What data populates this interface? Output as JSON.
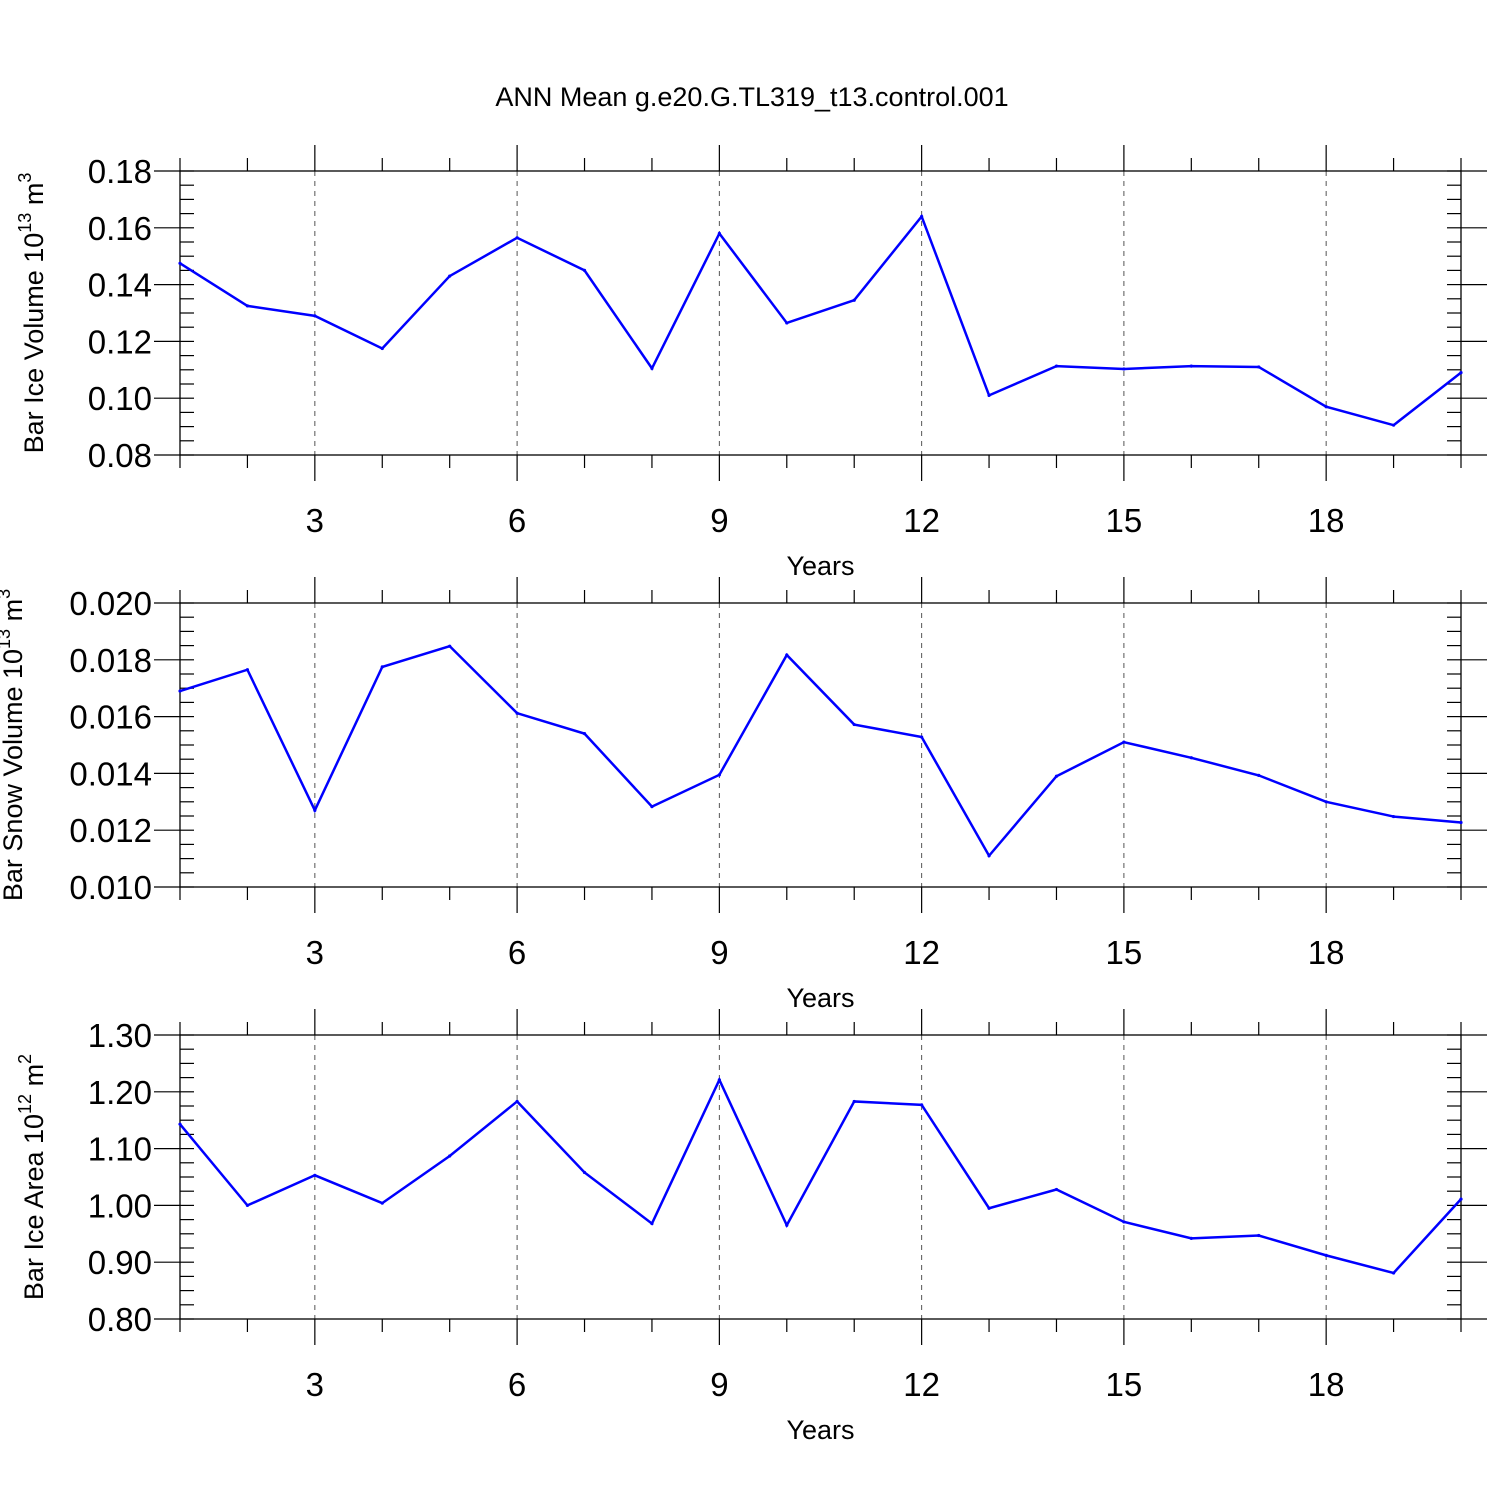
{
  "title": "ANN Mean g.e20.G.TL319_t13.control.001",
  "colors": {
    "line": "#0000ff",
    "axis": "#000000",
    "grid": "#555555"
  },
  "chart_data": [
    {
      "type": "line",
      "title": "ANN Mean g.e20.G.TL319_t13.control.001",
      "xlabel": "Years",
      "ylabel": {
        "text": "Bar Ice Volume 10",
        "sup1": "13",
        "mid": " m",
        "sup2": "3"
      },
      "xlim": [
        1,
        20
      ],
      "ylim": [
        0.08,
        0.18
      ],
      "x_ticks": [
        3,
        6,
        9,
        12,
        15,
        18
      ],
      "x_tick_labels": [
        "3",
        "6",
        "9",
        "12",
        "15",
        "18"
      ],
      "y_ticks": [
        0.08,
        0.1,
        0.12,
        0.14,
        0.16,
        0.18
      ],
      "y_tick_labels": [
        "0.08",
        "0.10",
        "0.12",
        "0.14",
        "0.16",
        "0.18"
      ],
      "y_minor_step": 0.005,
      "grid": "vertical-dashed",
      "x": [
        1,
        2,
        3,
        4,
        5,
        6,
        7,
        8,
        9,
        10,
        11,
        12,
        13,
        14,
        15,
        16,
        17,
        18,
        19,
        20
      ],
      "series": [
        {
          "name": "Bar Ice Volume",
          "values": [
            0.1475,
            0.1325,
            0.129,
            0.1175,
            0.143,
            0.1565,
            0.145,
            0.1105,
            0.158,
            0.1265,
            0.1345,
            0.164,
            0.101,
            0.1113,
            0.1103,
            0.1113,
            0.111,
            0.097,
            0.0905,
            0.109
          ]
        }
      ]
    },
    {
      "type": "line",
      "xlabel": "Years",
      "ylabel": {
        "text": "Bar Snow Volume 10",
        "sup1": "13",
        "mid": " m",
        "sup2": "3"
      },
      "xlim": [
        1,
        20
      ],
      "ylim": [
        0.01,
        0.02
      ],
      "x_ticks": [
        3,
        6,
        9,
        12,
        15,
        18
      ],
      "x_tick_labels": [
        "3",
        "6",
        "9",
        "12",
        "15",
        "18"
      ],
      "y_ticks": [
        0.01,
        0.012,
        0.014,
        0.016,
        0.018,
        0.02
      ],
      "y_tick_labels": [
        "0.010",
        "0.012",
        "0.014",
        "0.016",
        "0.018",
        "0.020"
      ],
      "y_minor_step": 0.0005,
      "grid": "vertical-dashed",
      "x": [
        1,
        2,
        3,
        4,
        5,
        6,
        7,
        8,
        9,
        10,
        11,
        12,
        13,
        14,
        15,
        16,
        17,
        18,
        19,
        20
      ],
      "series": [
        {
          "name": "Bar Snow Volume",
          "values": [
            0.0169,
            0.01765,
            0.0127,
            0.01775,
            0.01848,
            0.01612,
            0.0154,
            0.01283,
            0.01395,
            0.01817,
            0.01572,
            0.01528,
            0.0111,
            0.0139,
            0.0151,
            0.01455,
            0.01393,
            0.013,
            0.01248,
            0.01227
          ]
        }
      ]
    },
    {
      "type": "line",
      "xlabel": "Years",
      "ylabel": {
        "text": "Bar Ice Area 10",
        "sup1": "12",
        "mid": " m",
        "sup2": "2"
      },
      "xlim": [
        1,
        20
      ],
      "ylim": [
        0.8,
        1.3
      ],
      "x_ticks": [
        3,
        6,
        9,
        12,
        15,
        18
      ],
      "x_tick_labels": [
        "3",
        "6",
        "9",
        "12",
        "15",
        "18"
      ],
      "y_ticks": [
        0.8,
        0.9,
        1.0,
        1.1,
        1.2,
        1.3
      ],
      "y_tick_labels": [
        "0.80",
        "0.90",
        "1.00",
        "1.10",
        "1.20",
        "1.30"
      ],
      "y_minor_step": 0.025,
      "grid": "vertical-dashed",
      "x": [
        1,
        2,
        3,
        4,
        5,
        6,
        7,
        8,
        9,
        10,
        11,
        12,
        13,
        14,
        15,
        16,
        17,
        18,
        19,
        20
      ],
      "series": [
        {
          "name": "Bar Ice Area",
          "values": [
            1.143,
            1.0,
            1.053,
            1.004,
            1.087,
            1.183,
            1.058,
            0.968,
            1.221,
            0.965,
            1.183,
            1.177,
            0.995,
            1.028,
            0.971,
            0.942,
            0.947,
            0.912,
            0.881,
            1.011
          ]
        }
      ]
    }
  ]
}
